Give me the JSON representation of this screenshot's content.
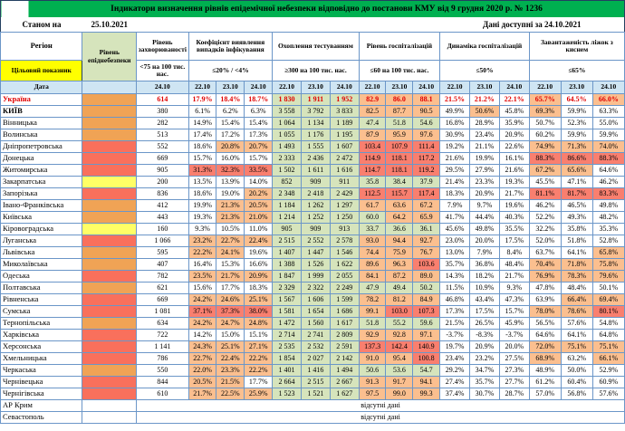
{
  "title": "Індикатори визначення рівнів епідемічної небезпеки відповідно до постанови КМУ від 9 грудня 2020 р. № 1236",
  "as_of_label": "Станом на",
  "as_of_date": "25.10.2021",
  "data_available_label": "Дані доступні за 24.10.2021",
  "no_data_text": "відсутні дані",
  "columns": {
    "region": "Регіон",
    "danger": "Рівень епіднебезпеки",
    "target_label": "Цільовий показник",
    "date_label": "Дата",
    "groups": [
      {
        "label": "Рівень захворюваності",
        "threshold": "<75 на 100 тис. нас.",
        "dates": [
          "24.10"
        ]
      },
      {
        "label": "Коефіцієнт виявлення випадків інфікування",
        "threshold": "≤20% / <4%",
        "dates": [
          "22.10",
          "23.10",
          "24.10"
        ]
      },
      {
        "label": "Охоплення тестуванням",
        "threshold": "≥300 на 100 тис. нас.",
        "dates": [
          "22.10",
          "23.10",
          "24.10"
        ]
      },
      {
        "label": "Рівень госпіталізацій",
        "threshold": "≤60 на 100 тис. нас.",
        "dates": [
          "22.10",
          "23.10",
          "24.10"
        ]
      },
      {
        "label": "Динаміка госпіталізацій",
        "threshold": "≤50%",
        "dates": [
          "22.10",
          "23.10",
          "24.10"
        ]
      },
      {
        "label": "Завантаженість ліжок з киснем",
        "threshold": "≤65%",
        "dates": [
          "22.10",
          "23.10",
          "24.10"
        ]
      }
    ]
  },
  "colors": {
    "green": "#d6e4bc",
    "orange": "#fbbf8f",
    "red": "#f97f6f",
    "yellow": "#ffff66",
    "danger_orange": "#f0a355",
    "danger_red": "#f9705c",
    "title_green": "#00b050",
    "available_green": "#92d050",
    "target_yellow": "#ffff00",
    "date_blue": "#cfe5f3",
    "grid_blue": "#6b96c8",
    "country_text_red": "#e00000"
  },
  "regions": [
    {
      "name": "Україна",
      "style": "country",
      "danger": "orange",
      "morbidity": "614",
      "detection": [
        "17.9%",
        "18.4%",
        "18.7%"
      ],
      "testing": [
        "1 830",
        "1 911",
        "1 952"
      ],
      "hospital": [
        "82.9",
        "86.0",
        "88.1"
      ],
      "dynamics": [
        "21.5%",
        "21.2%",
        "22.1%"
      ],
      "beds": [
        "65.7%",
        "64.5%",
        "66.0%"
      ]
    },
    {
      "name": "КИЇВ",
      "style": "capital",
      "danger": "orange",
      "morbidity": "380",
      "detection": [
        "6.1%",
        "6.2%",
        "6.3%"
      ],
      "testing": [
        "3 558",
        "3 792",
        "3 833"
      ],
      "hospital": [
        "82.5",
        "87.7",
        "90.5"
      ],
      "dynamics": [
        "49.9%",
        "50.6%",
        "45.8%"
      ],
      "beds": [
        "69.3%",
        "59.9%",
        "63.3%"
      ]
    },
    {
      "name": "Вінницька",
      "danger": "orange",
      "morbidity": "282",
      "detection": [
        "14.9%",
        "15.4%",
        "15.4%"
      ],
      "testing": [
        "1 064",
        "1 134",
        "1 189"
      ],
      "hospital": [
        "47.4",
        "51.8",
        "54.6"
      ],
      "dynamics": [
        "16.8%",
        "28.9%",
        "35.9%"
      ],
      "beds": [
        "50.7%",
        "52.3%",
        "55.0%"
      ]
    },
    {
      "name": "Волинська",
      "danger": "orange",
      "morbidity": "513",
      "detection": [
        "17.4%",
        "17.2%",
        "17.3%"
      ],
      "testing": [
        "1 055",
        "1 176",
        "1 195"
      ],
      "hospital": [
        "87.9",
        "95.9",
        "97.6"
      ],
      "dynamics": [
        "30.9%",
        "23.4%",
        "20.9%"
      ],
      "beds": [
        "60.2%",
        "59.9%",
        "59.9%"
      ]
    },
    {
      "name": "Дніпропетровська",
      "danger": "red",
      "morbidity": "552",
      "detection": [
        "18.6%",
        "20.8%",
        "20.7%"
      ],
      "testing": [
        "1 493",
        "1 555",
        "1 607"
      ],
      "hospital": [
        "103.4",
        "107.9",
        "111.4"
      ],
      "dynamics": [
        "19.2%",
        "21.1%",
        "22.6%"
      ],
      "beds": [
        "74.9%",
        "71.3%",
        "74.0%"
      ]
    },
    {
      "name": "Донецька",
      "danger": "red",
      "morbidity": "669",
      "detection": [
        "15.7%",
        "16.0%",
        "15.7%"
      ],
      "testing": [
        "2 333",
        "2 436",
        "2 472"
      ],
      "hospital": [
        "114.9",
        "118.1",
        "117.2"
      ],
      "dynamics": [
        "21.6%",
        "19.9%",
        "16.1%"
      ],
      "beds": [
        "88.3%",
        "86.6%",
        "88.3%"
      ]
    },
    {
      "name": "Житомирська",
      "danger": "red",
      "morbidity": "905",
      "detection": [
        "31.3%",
        "32.3%",
        "33.5%"
      ],
      "testing": [
        "1 502",
        "1 611",
        "1 616"
      ],
      "hospital": [
        "114.7",
        "118.1",
        "119.2"
      ],
      "dynamics": [
        "29.5%",
        "27.9%",
        "21.6%"
      ],
      "beds": [
        "67.2%",
        "65.6%",
        "64.6%"
      ]
    },
    {
      "name": "Закарпатська",
      "danger": "yellow",
      "morbidity": "200",
      "detection": [
        "13.5%",
        "13.9%",
        "14.0%"
      ],
      "testing": [
        "852",
        "909",
        "911"
      ],
      "hospital": [
        "35.8",
        "38.4",
        "37.9"
      ],
      "dynamics": [
        "21.4%",
        "23.3%",
        "19.3%"
      ],
      "beds": [
        "45.5%",
        "47.1%",
        "46.2%"
      ]
    },
    {
      "name": "Запорізька",
      "danger": "red",
      "morbidity": "836",
      "detection": [
        "18.6%",
        "19.0%",
        "20.2%"
      ],
      "testing": [
        "2 348",
        "2 418",
        "2 429"
      ],
      "hospital": [
        "112.5",
        "115.7",
        "117.4"
      ],
      "dynamics": [
        "18.3%",
        "20.9%",
        "21.7%"
      ],
      "beds": [
        "81.1%",
        "81.7%",
        "83.3%"
      ]
    },
    {
      "name": "Івано-Франківська",
      "danger": "orange",
      "morbidity": "412",
      "detection": [
        "19.9%",
        "21.3%",
        "20.5%"
      ],
      "testing": [
        "1 184",
        "1 262",
        "1 297"
      ],
      "hospital": [
        "61.7",
        "63.6",
        "67.2"
      ],
      "dynamics": [
        "7.9%",
        "9.7%",
        "19.6%"
      ],
      "beds": [
        "46.2%",
        "46.5%",
        "49.8%"
      ]
    },
    {
      "name": "Київська",
      "danger": "orange",
      "morbidity": "443",
      "detection": [
        "19.3%",
        "21.3%",
        "21.0%"
      ],
      "testing": [
        "1 214",
        "1 252",
        "1 250"
      ],
      "hospital": [
        "60.0",
        "64.2",
        "65.9"
      ],
      "dynamics": [
        "41.7%",
        "44.4%",
        "40.3%"
      ],
      "beds": [
        "52.2%",
        "49.3%",
        "48.2%"
      ]
    },
    {
      "name": "Кіровоградська",
      "danger": "yellow",
      "morbidity": "160",
      "detection": [
        "9.3%",
        "10.5%",
        "11.0%"
      ],
      "testing": [
        "905",
        "909",
        "913"
      ],
      "hospital": [
        "33.7",
        "36.6",
        "36.1"
      ],
      "dynamics": [
        "45.6%",
        "49.8%",
        "35.5%"
      ],
      "beds": [
        "32.2%",
        "35.8%",
        "35.3%"
      ]
    },
    {
      "name": "Луганська",
      "danger": "red",
      "morbidity": "1 066",
      "detection": [
        "23.2%",
        "22.7%",
        "22.4%"
      ],
      "testing": [
        "2 515",
        "2 552",
        "2 578"
      ],
      "hospital": [
        "93.0",
        "94.4",
        "92.7"
      ],
      "dynamics": [
        "23.0%",
        "20.0%",
        "17.5%"
      ],
      "beds": [
        "52.0%",
        "51.8%",
        "52.8%"
      ]
    },
    {
      "name": "Львівська",
      "danger": "orange",
      "morbidity": "595",
      "detection": [
        "22.2%",
        "24.1%",
        "19.6%"
      ],
      "testing": [
        "1 407",
        "1 447",
        "1 546"
      ],
      "hospital": [
        "74.4",
        "75.9",
        "76.7"
      ],
      "dynamics": [
        "13.0%",
        "7.9%",
        "8.4%"
      ],
      "beds": [
        "63.7%",
        "64.1%",
        "65.8%"
      ]
    },
    {
      "name": "Миколаївська",
      "danger": "orange",
      "morbidity": "407",
      "detection": [
        "16.4%",
        "15.3%",
        "16.6%"
      ],
      "testing": [
        "1 388",
        "1 526",
        "1 622"
      ],
      "hospital": [
        "89.6",
        "96.3",
        "103.6"
      ],
      "dynamics": [
        "35.7%",
        "36.8%",
        "48.4%"
      ],
      "beds": [
        "70.4%",
        "71.8%",
        "75.8%"
      ]
    },
    {
      "name": "Одеська",
      "danger": "red",
      "morbidity": "782",
      "detection": [
        "23.5%",
        "21.7%",
        "20.9%"
      ],
      "testing": [
        "1 847",
        "1 999",
        "2 055"
      ],
      "hospital": [
        "84.1",
        "87.2",
        "89.0"
      ],
      "dynamics": [
        "14.3%",
        "18.2%",
        "21.7%"
      ],
      "beds": [
        "76.9%",
        "78.3%",
        "79.6%"
      ]
    },
    {
      "name": "Полтавська",
      "danger": "orange",
      "morbidity": "621",
      "detection": [
        "15.6%",
        "17.7%",
        "18.3%"
      ],
      "testing": [
        "2 329",
        "2 322",
        "2 249"
      ],
      "hospital": [
        "47.9",
        "49.4",
        "50.2"
      ],
      "dynamics": [
        "11.5%",
        "10.9%",
        "9.3%"
      ],
      "beds": [
        "47.8%",
        "48.4%",
        "50.1%"
      ]
    },
    {
      "name": "Рівненська",
      "danger": "red",
      "morbidity": "669",
      "detection": [
        "24.2%",
        "24.6%",
        "25.1%"
      ],
      "testing": [
        "1 567",
        "1 606",
        "1 599"
      ],
      "hospital": [
        "78.2",
        "81.2",
        "84.9"
      ],
      "dynamics": [
        "46.8%",
        "43.4%",
        "47.3%"
      ],
      "beds": [
        "63.9%",
        "66.4%",
        "69.4%"
      ]
    },
    {
      "name": "Сумська",
      "danger": "red",
      "morbidity": "1 081",
      "detection": [
        "37.1%",
        "37.3%",
        "38.0%"
      ],
      "testing": [
        "1 581",
        "1 654",
        "1 686"
      ],
      "hospital": [
        "99.1",
        "103.0",
        "107.3"
      ],
      "dynamics": [
        "17.3%",
        "17.5%",
        "15.7%"
      ],
      "beds": [
        "78.0%",
        "78.6%",
        "80.1%"
      ]
    },
    {
      "name": "Тернопільська",
      "danger": "orange",
      "morbidity": "634",
      "detection": [
        "24.2%",
        "24.7%",
        "24.8%"
      ],
      "testing": [
        "1 472",
        "1 560",
        "1 617"
      ],
      "hospital": [
        "51.8",
        "55.2",
        "59.6"
      ],
      "dynamics": [
        "21.5%",
        "26.5%",
        "45.9%"
      ],
      "beds": [
        "56.5%",
        "57.6%",
        "54.8%"
      ]
    },
    {
      "name": "Харківська",
      "danger": "red",
      "morbidity": "722",
      "detection": [
        "14.2%",
        "15.0%",
        "15.1%"
      ],
      "testing": [
        "2 714",
        "2 741",
        "2 809"
      ],
      "hospital": [
        "92.9",
        "92.8",
        "97.1"
      ],
      "dynamics": [
        "-3.7%",
        "-8.3%",
        "-3.7%"
      ],
      "beds": [
        "64.6%",
        "64.1%",
        "64.8%"
      ]
    },
    {
      "name": "Херсонська",
      "danger": "red",
      "morbidity": "1 141",
      "detection": [
        "24.3%",
        "25.1%",
        "27.1%"
      ],
      "testing": [
        "2 535",
        "2 532",
        "2 591"
      ],
      "hospital": [
        "137.3",
        "142.4",
        "140.9"
      ],
      "dynamics": [
        "19.7%",
        "20.9%",
        "20.0%"
      ],
      "beds": [
        "72.0%",
        "75.1%",
        "75.1%"
      ]
    },
    {
      "name": "Хмельницька",
      "danger": "red",
      "morbidity": "786",
      "detection": [
        "22.7%",
        "22.4%",
        "22.2%"
      ],
      "testing": [
        "1 854",
        "2 027",
        "2 142"
      ],
      "hospital": [
        "91.0",
        "95.4",
        "100.8"
      ],
      "dynamics": [
        "23.4%",
        "23.2%",
        "27.5%"
      ],
      "beds": [
        "68.9%",
        "63.2%",
        "66.1%"
      ]
    },
    {
      "name": "Черкаська",
      "danger": "orange",
      "morbidity": "550",
      "detection": [
        "22.0%",
        "23.3%",
        "22.2%"
      ],
      "testing": [
        "1 401",
        "1 416",
        "1 494"
      ],
      "hospital": [
        "50.6",
        "53.6",
        "54.7"
      ],
      "dynamics": [
        "29.2%",
        "34.7%",
        "27.3%"
      ],
      "beds": [
        "48.9%",
        "50.0%",
        "52.9%"
      ]
    },
    {
      "name": "Чернівецька",
      "danger": "red",
      "morbidity": "844",
      "detection": [
        "20.5%",
        "21.5%",
        "17.7%"
      ],
      "testing": [
        "2 664",
        "2 515",
        "2 667"
      ],
      "hospital": [
        "91.3",
        "91.7",
        "94.1"
      ],
      "dynamics": [
        "27.4%",
        "35.7%",
        "27.7%"
      ],
      "beds": [
        "61.2%",
        "60.4%",
        "60.9%"
      ]
    },
    {
      "name": "Чернігівська",
      "danger": "red",
      "morbidity": "610",
      "detection": [
        "21.7%",
        "22.5%",
        "25.9%"
      ],
      "testing": [
        "1 523",
        "1 521",
        "1 627"
      ],
      "hospital": [
        "97.5",
        "99.0",
        "99.3"
      ],
      "dynamics": [
        "37.4%",
        "30.7%",
        "28.7%"
      ],
      "beds": [
        "57.0%",
        "56.8%",
        "57.6%"
      ]
    },
    {
      "name": "АР Крим",
      "danger": "none",
      "no_data": true
    },
    {
      "name": "Севастополь",
      "danger": "none",
      "no_data": true
    }
  ]
}
